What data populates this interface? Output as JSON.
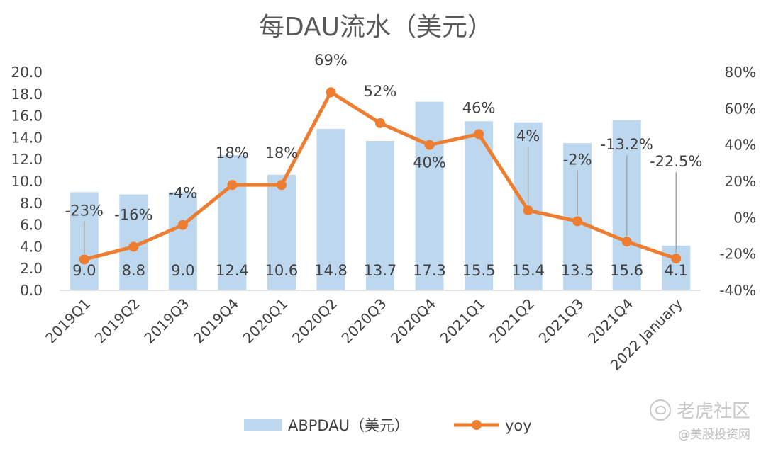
{
  "chart_data": {
    "type": "bar+line",
    "title": "每DAU流水（美元）",
    "categories": [
      "2019Q1",
      "2019Q2",
      "2019Q3",
      "2019Q4",
      "2020Q1",
      "2020Q2",
      "2020Q3",
      "2020Q4",
      "2021Q1",
      "2021Q2",
      "2021Q3",
      "2021Q4",
      "2022 January"
    ],
    "series": [
      {
        "name": "ABPDAU（美元）",
        "type": "bar",
        "axis": "left",
        "values": [
          9.0,
          8.8,
          9.0,
          12.4,
          10.6,
          14.8,
          13.7,
          17.3,
          15.5,
          15.4,
          13.5,
          15.6,
          4.1
        ],
        "labels": [
          "9.0",
          "8.8",
          "9.0",
          "12.4",
          "10.6",
          "14.8",
          "13.7",
          "17.3",
          "15.5",
          "15.4",
          "13.5",
          "15.6",
          "4.1"
        ],
        "color": "#bdd7ee"
      },
      {
        "name": "yoy",
        "type": "line",
        "axis": "right",
        "values": [
          -23,
          -16,
          -4,
          18,
          18,
          69,
          52,
          40,
          46,
          4,
          -2,
          -13.2,
          -22.5
        ],
        "labels": [
          "-23%",
          "-16%",
          "-4%",
          "18%",
          "18%",
          "69%",
          "52%",
          "40%",
          "46%",
          "4%",
          "-2%",
          "-13.2%",
          "-22.5%"
        ],
        "color": "#ed7d31"
      }
    ],
    "y_left": {
      "min": 0,
      "max": 20,
      "ticks": [
        "0.0",
        "2.0",
        "4.0",
        "6.0",
        "8.0",
        "10.0",
        "12.0",
        "14.0",
        "16.0",
        "18.0",
        "20.0"
      ]
    },
    "y_right": {
      "min": -40,
      "max": 80,
      "ticks": [
        "-40%",
        "-20%",
        "0%",
        "20%",
        "40%",
        "60%",
        "80%"
      ]
    },
    "grid": false,
    "legend": "bottom"
  },
  "watermark": {
    "brand": "老虎社区",
    "account": "@美股投资网"
  }
}
